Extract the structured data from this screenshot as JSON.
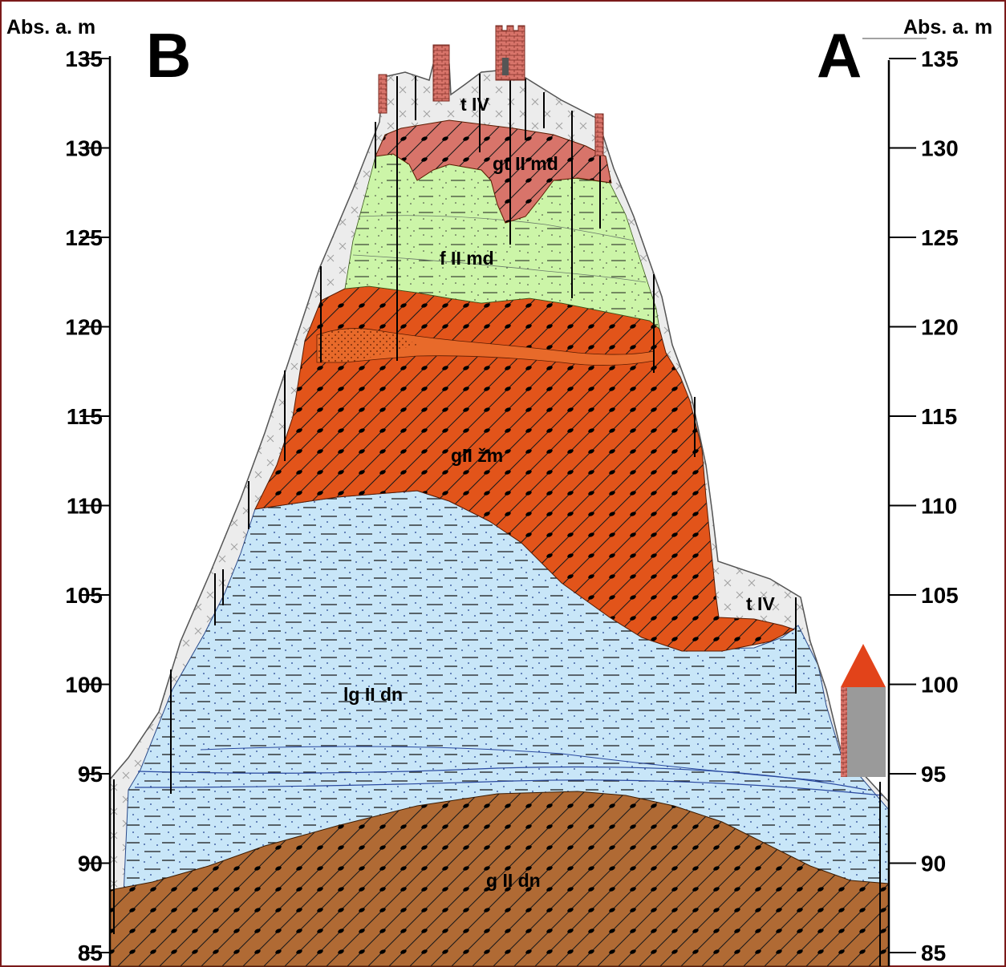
{
  "axis": {
    "left_title": "Abs. a. m",
    "right_title": "Abs. a. m",
    "ticks": [
      135,
      130,
      125,
      120,
      115,
      110,
      105,
      100,
      95,
      90,
      85
    ],
    "tick_labels": [
      "135",
      "130",
      "125",
      "120",
      "115",
      "110",
      "105",
      "100",
      "95",
      "90",
      "85"
    ]
  },
  "profile": {
    "left_end": "B",
    "right_end": "A"
  },
  "layers": [
    {
      "id": "t-iv-top",
      "label": "t IV",
      "fill": "#ececec"
    },
    {
      "id": "gt-ii-md",
      "label": "gt II md",
      "fill": "#d8746a"
    },
    {
      "id": "f-ii-md",
      "label": "f II md",
      "fill": "#ccf5a8"
    },
    {
      "id": "g-ii-zm",
      "label": "gII žm",
      "fill": "#e2541a"
    },
    {
      "id": "t-iv-slope",
      "label": "t IV",
      "fill": "#ececec"
    },
    {
      "id": "lg-ii-dn",
      "label": "lg II dn",
      "fill": "#c8e6f8"
    },
    {
      "id": "g-ii-dn",
      "label": "g II dn",
      "fill": "#b06a34"
    }
  ],
  "colors": {
    "frame": "#7b1a1a",
    "brick": "#d8746a",
    "roof": "#e2431a",
    "house_wall": "#9a9a9a"
  }
}
